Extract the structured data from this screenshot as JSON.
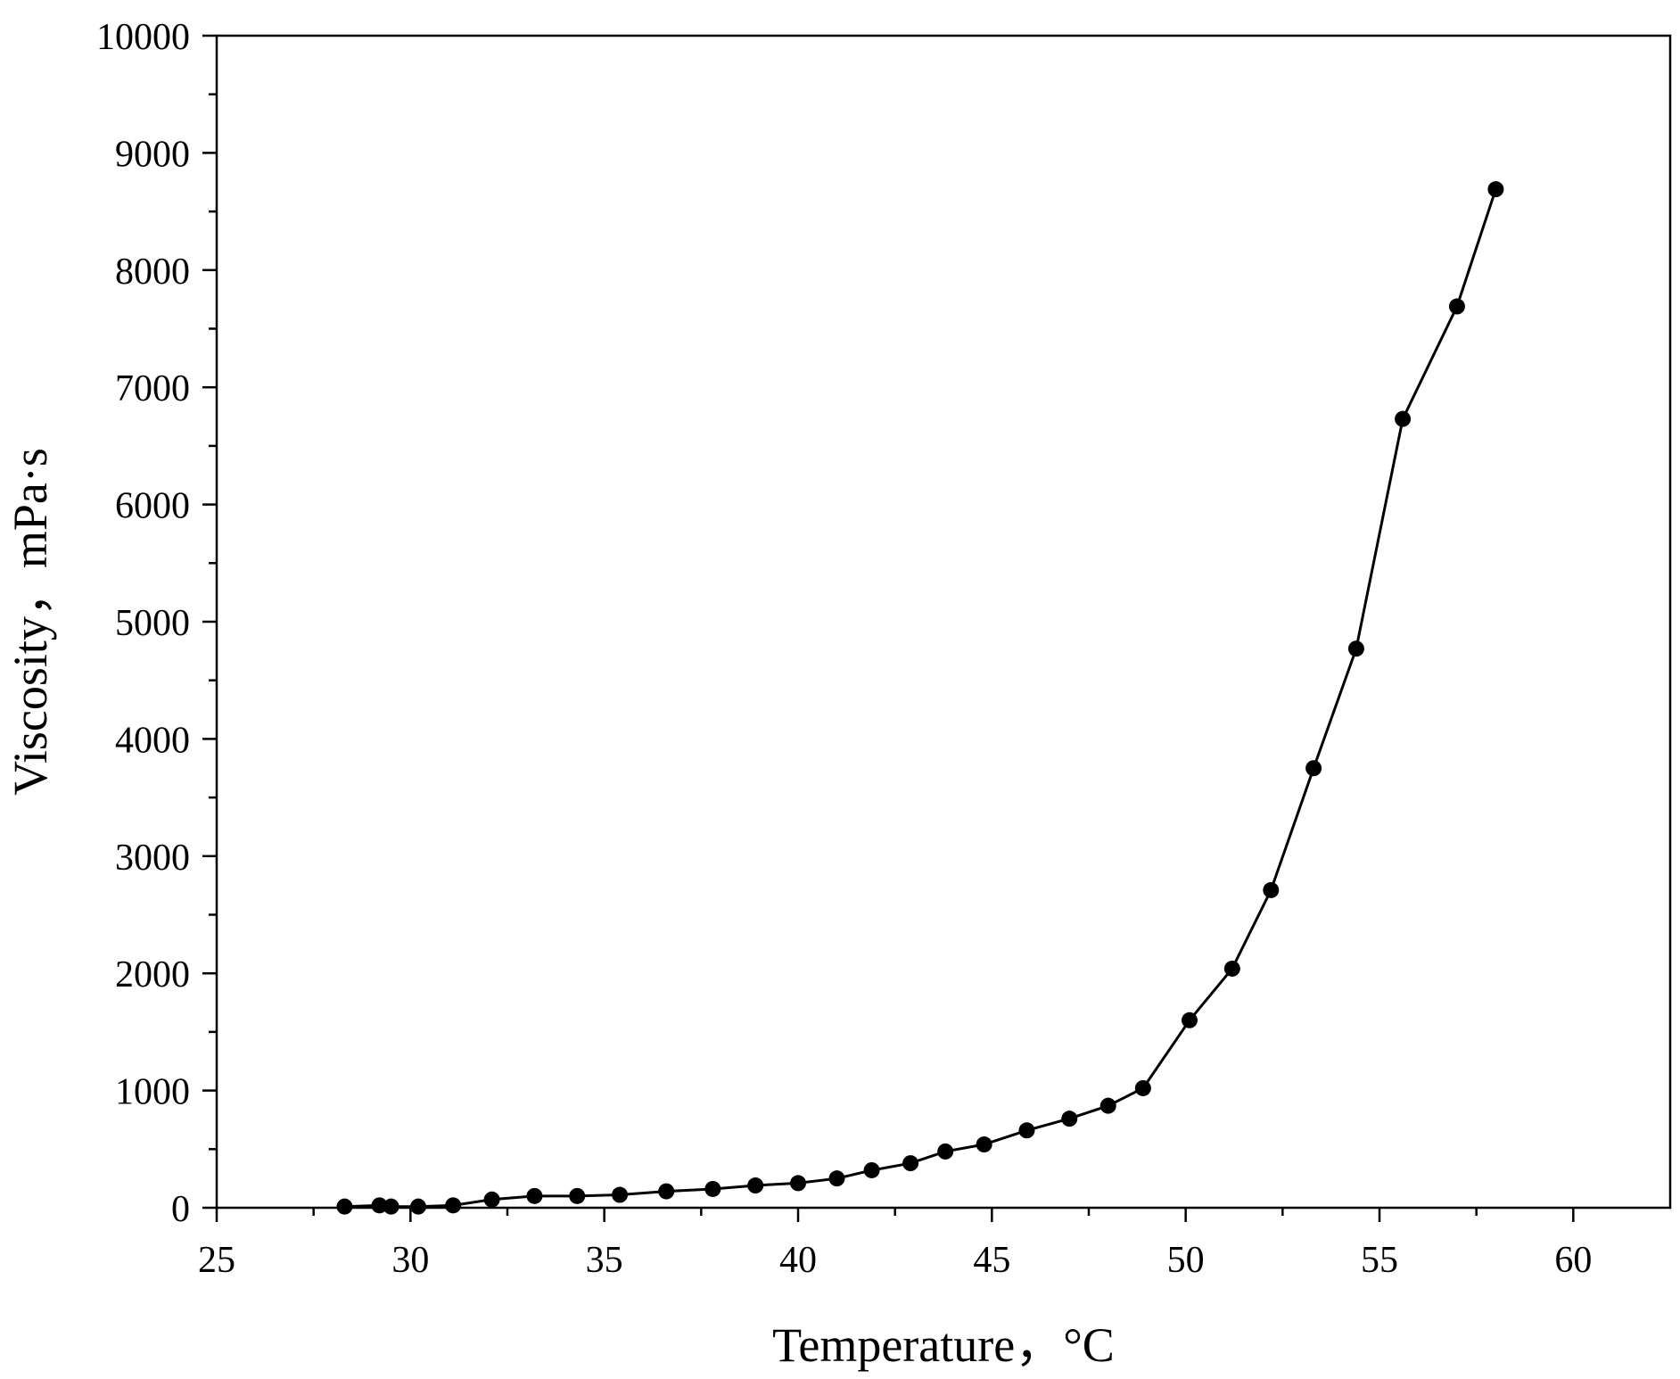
{
  "chart_data": {
    "type": "line",
    "xlabel": "Temperature，°C",
    "ylabel": "Viscosity，mPa·s",
    "xlim": [
      25,
      62.5
    ],
    "ylim": [
      0,
      10000
    ],
    "x_ticks": [
      25,
      30,
      35,
      40,
      45,
      50,
      55,
      60
    ],
    "y_ticks": [
      0,
      1000,
      2000,
      3000,
      4000,
      5000,
      6000,
      7000,
      8000,
      9000,
      10000
    ],
    "grid": false,
    "markers": "filled-circle",
    "line_color": "#000000",
    "series": [
      {
        "x": [
          28.3,
          29.2,
          29.5,
          30.2,
          31.1,
          32.1,
          33.2,
          34.3,
          35.4,
          36.6,
          37.8,
          38.9,
          40.0,
          41.0,
          41.9,
          42.9,
          43.8,
          44.8,
          45.9,
          47.0,
          48.0,
          48.9,
          50.1,
          51.2,
          52.2,
          53.3,
          54.4,
          55.6,
          57.0,
          58.0
        ],
        "y": [
          10,
          20,
          10,
          10,
          20,
          70,
          100,
          100,
          110,
          140,
          160,
          190,
          210,
          250,
          320,
          380,
          480,
          540,
          660,
          760,
          870,
          1020,
          1600,
          2040,
          2710,
          3750,
          4770,
          6730,
          7690,
          8690
        ]
      }
    ]
  }
}
